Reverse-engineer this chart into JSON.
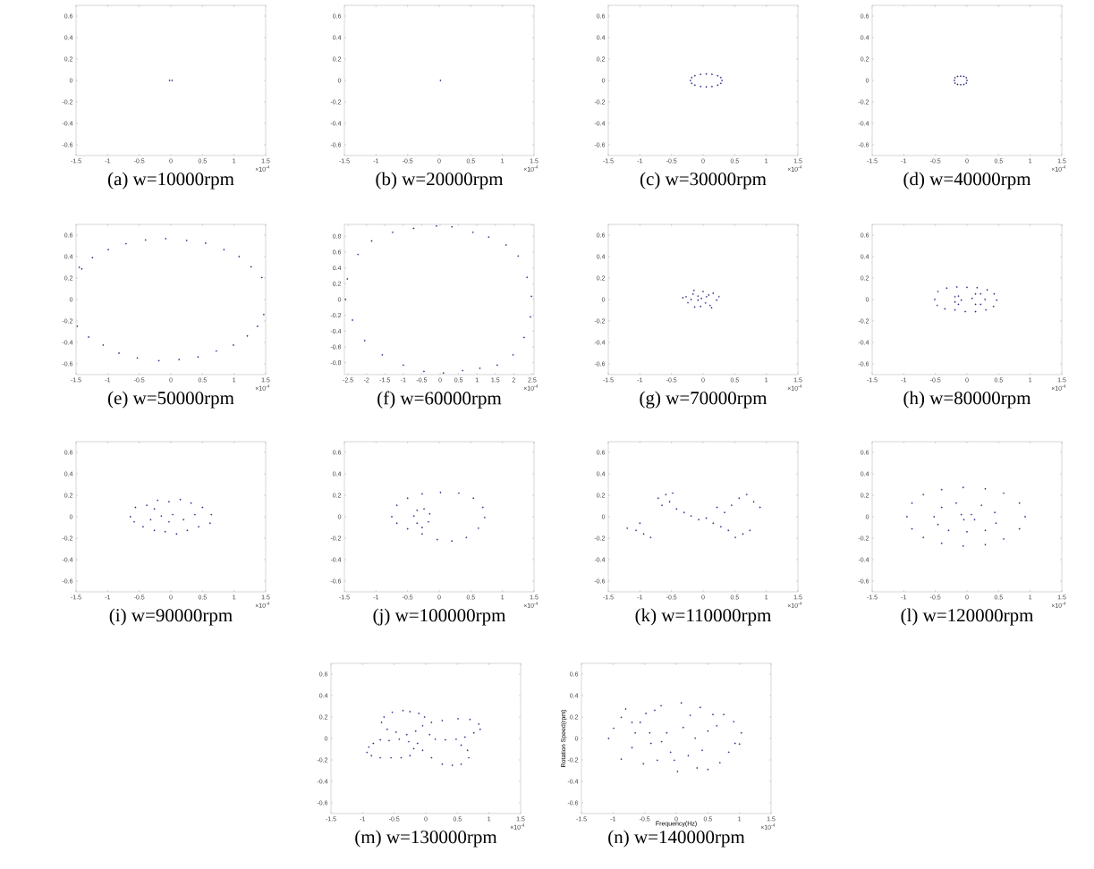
{
  "chart_data": [
    {
      "type": "scatter",
      "title": "(a) w=10000rpm",
      "color": "#2e2e8a",
      "marker": "circle",
      "xlim": [
        -1.5,
        1.5
      ],
      "ylim": [
        -0.7,
        0.7
      ],
      "xticks": [
        -1.5,
        -1,
        -0.5,
        0,
        0.5,
        1,
        1.5
      ],
      "yticks": [
        -0.6,
        -0.4,
        -0.2,
        0,
        0.2,
        0.4,
        0.6
      ],
      "annotations": [
        "×10$^{-4}$"
      ],
      "x": [
        -0.02,
        0.02
      ],
      "values": [
        0,
        0
      ]
    },
    {
      "type": "scatter",
      "title": "(b) w=20000rpm",
      "color": "#2e2e8a",
      "marker": "circle",
      "xlim": [
        -1.5,
        1.5
      ],
      "ylim": [
        -0.7,
        0.7
      ],
      "xticks": [
        -1.5,
        -1,
        -0.5,
        0,
        0.5,
        1,
        1.5
      ],
      "yticks": [
        -0.6,
        -0.4,
        -0.2,
        0,
        0.2,
        0.4,
        0.6
      ],
      "annotations": [
        "×10$^{-4}$"
      ],
      "x": [
        0.02
      ],
      "values": [
        0
      ]
    },
    {
      "type": "scatter",
      "title": "(c) w=30000rpm",
      "color": "#2e2e8a",
      "marker": "circle",
      "xlim": [
        -1.5,
        1.5
      ],
      "ylim": [
        -0.7,
        0.7
      ],
      "xticks": [
        -1.5,
        -1,
        -0.5,
        0,
        0.5,
        1,
        1.5
      ],
      "yticks": [
        -0.6,
        -0.4,
        -0.2,
        0,
        0.2,
        0.4,
        0.6
      ],
      "annotations": [
        "×10$^{-4}$"
      ],
      "x": [
        0.3,
        0.28,
        0.23,
        0.14,
        0.05,
        -0.04,
        -0.13,
        -0.18,
        -0.2,
        -0.18,
        -0.13,
        -0.04,
        0.05,
        0.14,
        0.23,
        0.28
      ],
      "values": [
        0,
        0.027,
        0.044,
        0.057,
        0.06,
        0.057,
        0.044,
        0.027,
        0,
        -0.027,
        -0.044,
        -0.057,
        -0.06,
        -0.057,
        -0.044,
        -0.027
      ]
    },
    {
      "type": "scatter",
      "title": "(d) w=40000rpm",
      "color": "#2e2e8a",
      "marker": "circle",
      "xlim": [
        -1.5,
        1.5
      ],
      "ylim": [
        -0.7,
        0.7
      ],
      "xticks": [
        -1.5,
        -1,
        -0.5,
        0,
        0.5,
        1,
        1.5
      ],
      "yticks": [
        -0.6,
        -0.4,
        -0.2,
        0,
        0.2,
        0.4,
        0.6
      ],
      "annotations": [
        "×10$^{-4}$"
      ],
      "x": [
        0,
        -0.01,
        -0.05,
        -0.1,
        -0.15,
        -0.19,
        -0.2,
        -0.19,
        -0.15,
        -0.1,
        -0.05,
        -0.01
      ],
      "values": [
        0,
        0.025,
        0.038,
        0.04,
        0.038,
        0.025,
        0,
        -0.025,
        -0.038,
        -0.04,
        -0.038,
        -0.025
      ]
    },
    {
      "type": "scatter",
      "title": "(e) w=50000rpm",
      "color": "#2e2e8a",
      "marker": "circle",
      "xlim": [
        -1.5,
        1.5
      ],
      "ylim": [
        -0.7,
        0.7
      ],
      "xticks": [
        -1.5,
        -1,
        -0.5,
        0,
        0.5,
        1,
        1.5
      ],
      "yticks": [
        -0.6,
        -0.4,
        -0.2,
        0,
        0.2,
        0.4,
        0.6
      ],
      "annotations": [
        "×10$^{-4}$"
      ],
      "x": [
        -1.45,
        -1.41,
        -1.24,
        -0.99,
        -0.71,
        -0.4,
        -0.08,
        0.25,
        0.55,
        0.84,
        1.08,
        1.27,
        1.44,
        1.47,
        1.37,
        1.21,
        0.99,
        0.72,
        0.43,
        0.13,
        -0.19,
        -0.53,
        -0.82,
        -1.07,
        -1.3,
        -1.48
      ],
      "values": [
        0.3,
        0.285,
        0.39,
        0.465,
        0.52,
        0.555,
        0.567,
        0.55,
        0.525,
        0.465,
        0.4,
        0.305,
        0.205,
        -0.14,
        -0.25,
        -0.34,
        -0.425,
        -0.48,
        -0.535,
        -0.56,
        -0.57,
        -0.545,
        -0.5,
        -0.425,
        -0.35,
        -0.25
      ]
    },
    {
      "type": "scatter",
      "title": "(f) w=60000rpm",
      "color": "#2e2e8a",
      "marker": "circle",
      "xlim": [
        -2.6,
        2.55
      ],
      "ylim": [
        -0.95,
        0.95
      ],
      "xticks": [
        -2.5,
        -2,
        -1.5,
        -1,
        -0.5,
        0,
        0.5,
        1,
        1.5,
        2,
        2.5
      ],
      "yticks": [
        -0.8,
        -0.6,
        -0.4,
        -0.2,
        0,
        0.2,
        0.4,
        0.6,
        0.8
      ],
      "annotations": [
        "×10$^{-4}$"
      ],
      "x": [
        -0.1,
        0.32,
        0.89,
        1.32,
        1.79,
        2.12,
        2.36,
        2.48,
        2.45,
        2.28,
        1.98,
        1.55,
        1.08,
        0.61,
        0.09,
        -0.44,
        -1.0,
        -1.57,
        -2.05,
        -2.38,
        -2.57,
        -2.52,
        -2.23,
        -1.86,
        -1.29,
        -0.72
      ],
      "values": [
        0.93,
        0.92,
        0.85,
        0.79,
        0.69,
        0.55,
        0.28,
        0.04,
        -0.22,
        -0.48,
        -0.7,
        -0.83,
        -0.87,
        -0.9,
        -0.93,
        -0.91,
        -0.83,
        -0.7,
        -0.52,
        -0.26,
        0,
        0.26,
        0.57,
        0.74,
        0.85,
        0.9
      ]
    },
    {
      "type": "scatter",
      "title": "(g) w=70000rpm",
      "color": "#2e2e8a",
      "marker": "circle",
      "xlim": [
        -1.5,
        1.5
      ],
      "ylim": [
        -0.7,
        0.7
      ],
      "xticks": [
        -1.5,
        -1,
        -0.5,
        0,
        0.5,
        1,
        1.5
      ],
      "yticks": [
        -0.6,
        -0.4,
        -0.2,
        0,
        0.2,
        0.4,
        0.6
      ],
      "annotations": [
        "×10$^{-4}$"
      ],
      "x": [
        -0.32,
        -0.24,
        -0.16,
        -0.145,
        -0.08,
        -0.04,
        0,
        0.054,
        0.11,
        0.16,
        0.215,
        0.25,
        -0.19,
        -0.134,
        0.038,
        0.09,
        -0.27,
        0.134,
        -0.08,
        -0.027
      ],
      "values": [
        0.016,
        -0.03,
        0.05,
        0.084,
        -0.006,
        -0.065,
        0.074,
        0.026,
        -0.055,
        0.058,
        -0.006,
        0.026,
        0,
        -0.07,
        -0.032,
        0.042,
        0.026,
        -0.077,
        0.032,
        0.01
      ]
    },
    {
      "type": "scatter",
      "title": "(h) w=80000rpm",
      "color": "#2e2e8a",
      "marker": "circle",
      "xlim": [
        -1.5,
        1.5
      ],
      "ylim": [
        -0.7,
        0.7
      ],
      "xticks": [
        -1.5,
        -1,
        -0.5,
        0,
        0.5,
        1,
        1.5
      ],
      "yticks": [
        -0.6,
        -0.4,
        -0.2,
        0,
        0.2,
        0.4,
        0.6
      ],
      "annotations": [
        "×10$^{-4}$"
      ],
      "x": [
        -0.51,
        -0.46,
        -0.32,
        -0.16,
        0,
        0.16,
        0.32,
        0.43,
        0.47,
        0.42,
        0.3,
        0.135,
        -0.027,
        -0.19,
        -0.35,
        -0.47,
        -0.19,
        -0.135,
        -0.09,
        -0.135,
        -0.19,
        0.08,
        0.135,
        0.216,
        0.286,
        0.216,
        0.135
      ],
      "values": [
        0,
        0.074,
        0.106,
        0.116,
        0.113,
        0.11,
        0.09,
        0.052,
        -0.006,
        -0.065,
        -0.097,
        -0.113,
        -0.113,
        -0.097,
        -0.087,
        -0.055,
        0.026,
        0.032,
        -0.006,
        -0.045,
        -0.023,
        0.01,
        0.052,
        0.052,
        0,
        -0.045,
        -0.045
      ]
    },
    {
      "type": "scatter",
      "title": "(i) w=90000rpm",
      "color": "#2e2e8a",
      "marker": "circle",
      "xlim": [
        -1.5,
        1.5
      ],
      "ylim": [
        -0.7,
        0.7
      ],
      "xticks": [
        -1.5,
        -1,
        -0.5,
        0,
        0.5,
        1,
        1.5
      ],
      "yticks": [
        -0.6,
        -0.4,
        -0.2,
        0,
        0.2,
        0.4,
        0.6
      ],
      "annotations": [
        "×10$^{-4}$"
      ],
      "x": [
        -0.64,
        -0.56,
        -0.38,
        -0.26,
        -0.21,
        -0.03,
        0.15,
        0.32,
        0.5,
        0.64,
        0.62,
        0.44,
        0.26,
        0.09,
        -0.09,
        -0.26,
        -0.44,
        -0.58,
        -0.15,
        0.03,
        0.2,
        -0.32,
        -0.03,
        0.38
      ],
      "values": [
        0,
        0.087,
        0.107,
        0.073,
        0.153,
        0.14,
        0.16,
        0.127,
        0.087,
        0.02,
        -0.06,
        -0.093,
        -0.127,
        -0.16,
        -0.14,
        -0.127,
        -0.093,
        -0.047,
        0.007,
        0.02,
        -0.027,
        -0.027,
        -0.047,
        0.02
      ]
    },
    {
      "type": "scatter",
      "title": "(j) w=100000rpm",
      "color": "#2e2e8a",
      "marker": "circle",
      "xlim": [
        -1.5,
        1.5
      ],
      "ylim": [
        -0.7,
        0.7
      ],
      "xticks": [
        -1.5,
        -1,
        -0.5,
        0,
        0.5,
        1,
        1.5
      ],
      "yticks": [
        -0.6,
        -0.4,
        -0.2,
        0,
        0.2,
        0.4,
        0.6
      ],
      "annotations": [
        "×10$^{-4}$"
      ],
      "x": [
        -0.75,
        -0.67,
        -0.5,
        -0.27,
        0.02,
        0.31,
        0.54,
        0.69,
        0.72,
        0.62,
        0.43,
        0.2,
        -0.03,
        -0.27,
        -0.5,
        -0.67,
        -0.4,
        -0.35,
        -0.24,
        -0.15,
        -0.17,
        -0.27,
        -0.35
      ],
      "values": [
        0,
        0.107,
        0.173,
        0.213,
        0.227,
        0.22,
        0.173,
        0.087,
        -0.007,
        -0.107,
        -0.193,
        -0.227,
        -0.213,
        -0.16,
        -0.113,
        -0.06,
        0.007,
        0.06,
        0.073,
        0.027,
        -0.047,
        -0.1,
        -0.06
      ]
    },
    {
      "type": "scatter",
      "title": "(k) w=110000rpm",
      "color": "#2e2e8a",
      "marker": "circle",
      "xlim": [
        -1.5,
        1.5
      ],
      "ylim": [
        -0.7,
        0.7
      ],
      "xticks": [
        -1.5,
        -1,
        -0.5,
        0,
        0.5,
        1,
        1.5
      ],
      "yticks": [
        -0.6,
        -0.4,
        -0.2,
        0,
        0.2,
        0.4,
        0.6
      ],
      "annotations": [
        "×10$^{-4}$"
      ],
      "x": [
        -1.2,
        -1.06,
        -0.94,
        -0.83,
        -1.0,
        -0.71,
        -0.59,
        -0.53,
        -0.65,
        -0.48,
        -0.42,
        -0.3,
        -0.19,
        -0.07,
        0.05,
        0.16,
        0.28,
        0.4,
        0.51,
        0.63,
        0.34,
        0.45,
        0.57,
        0.69,
        0.8,
        0.9,
        0.74,
        0.22
      ],
      "values": [
        -0.107,
        -0.127,
        -0.16,
        -0.193,
        -0.06,
        0.173,
        0.207,
        0.14,
        0.107,
        0.22,
        0.073,
        0.04,
        0.007,
        -0.027,
        -0.013,
        -0.06,
        -0.093,
        -0.127,
        -0.193,
        -0.16,
        0.04,
        0.107,
        0.173,
        0.207,
        0.14,
        0.087,
        -0.127,
        0.087
      ]
    },
    {
      "type": "scatter",
      "title": "(l) w=120000rpm",
      "color": "#2e2e8a",
      "marker": "circle",
      "xlim": [
        -1.5,
        1.5
      ],
      "ylim": [
        -0.7,
        0.7
      ],
      "xticks": [
        -1.5,
        -1,
        -0.5,
        0,
        0.5,
        1,
        1.5
      ],
      "yticks": [
        -0.6,
        -0.4,
        -0.2,
        0,
        0.2,
        0.4,
        0.6
      ],
      "annotations": [
        "×10$^{-4}$"
      ],
      "x": [
        -0.95,
        -0.87,
        -0.69,
        -0.4,
        -0.06,
        0.29,
        0.58,
        0.83,
        0.92,
        0.83,
        0.58,
        0.29,
        -0.06,
        -0.4,
        -0.69,
        -0.87,
        -0.52,
        -0.4,
        -0.17,
        0.23,
        0.44,
        0.46,
        0.29,
        0,
        -0.29,
        -0.46,
        -0.09,
        -0.05,
        0.07,
        0.12
      ],
      "values": [
        0,
        0.127,
        0.207,
        0.253,
        0.273,
        0.26,
        0.22,
        0.127,
        0,
        -0.113,
        -0.207,
        -0.26,
        -0.273,
        -0.247,
        -0.193,
        -0.113,
        0,
        0.087,
        0.127,
        0.107,
        0.04,
        -0.06,
        -0.127,
        -0.14,
        -0.127,
        -0.073,
        0.02,
        -0.027,
        0.02,
        -0.027
      ]
    },
    {
      "type": "scatter",
      "title": "(m) w=130000rpm",
      "color": "#2e2e8a",
      "marker": "circle",
      "xlim": [
        -1.5,
        1.5
      ],
      "ylim": [
        -0.7,
        0.7
      ],
      "xticks": [
        -1.5,
        -1,
        -0.5,
        0,
        0.5,
        1,
        1.5
      ],
      "yticks": [
        -0.6,
        -0.4,
        -0.2,
        0,
        0.2,
        0.4,
        0.6
      ],
      "annotations": [
        "×10$^{-4}$"
      ],
      "x": [
        -0.9,
        -0.93,
        -0.86,
        -0.72,
        -0.55,
        -0.39,
        -0.25,
        -0.19,
        -0.27,
        -0.42,
        -0.58,
        -0.72,
        -0.83,
        -0.7,
        -0.66,
        -0.53,
        -0.36,
        -0.25,
        -0.11,
        -0.02,
        -0.05,
        -0.16,
        -0.3,
        -0.47,
        -0.61,
        0.09,
        0.26,
        0.51,
        0.7,
        0.84,
        0.86,
        0.76,
        0.62,
        0.48,
        0.31,
        0.15,
        0.06,
        -0.13,
        -0.05,
        0.09,
        0.26,
        0.42,
        0.56,
        0.68,
        0.66,
        0.56
      ],
      "values": [
        -0.08,
        -0.13,
        -0.16,
        -0.18,
        -0.18,
        -0.18,
        -0.16,
        -0.095,
        -0.03,
        -0.007,
        -0.02,
        -0.013,
        -0.046,
        0.15,
        0.2,
        0.243,
        0.26,
        0.25,
        0.233,
        0.2,
        0.118,
        0.069,
        0.036,
        0.059,
        0.085,
        0.15,
        0.167,
        0.184,
        0.177,
        0.134,
        0.085,
        0.052,
        0.013,
        -0.007,
        -0.013,
        -0.007,
        0.036,
        -0.046,
        -0.11,
        -0.18,
        -0.24,
        -0.25,
        -0.24,
        -0.18,
        -0.11,
        -0.062
      ]
    },
    {
      "type": "scatter",
      "title": "(n) w=140000rpm",
      "xlabel": "Frequency(Hz)",
      "ylabel": "Rotation Speed(rpm)",
      "color": "#2e2e8a",
      "marker": "circle",
      "xlim": [
        -1.5,
        1.5
      ],
      "ylim": [
        -0.7,
        0.7
      ],
      "xticks": [
        -1.5,
        -1,
        -0.5,
        0,
        0.5,
        1,
        1.5
      ],
      "yticks": [
        -0.6,
        -0.4,
        -0.2,
        0,
        0.2,
        0.4,
        0.6
      ],
      "annotations": [
        "×10$^{-4}$"
      ],
      "x": [
        -1.07,
        -0.99,
        -0.87,
        -0.87,
        -0.8,
        -0.7,
        -0.65,
        -0.7,
        -0.57,
        -0.52,
        -0.48,
        -0.42,
        -0.4,
        -0.34,
        -0.3,
        -0.24,
        -0.23,
        -0.15,
        -0.09,
        -0.03,
        0.02,
        0.08,
        0.11,
        0.19,
        0.22,
        0.3,
        0.33,
        0.38,
        0.41,
        0.5,
        0.58,
        0.64,
        0.69,
        0.75,
        0.83,
        0.91,
        0.93,
        1.0,
        1.03,
        0.5
      ],
      "values": [
        0,
        0.095,
        0.197,
        -0.193,
        0.275,
        0.15,
        0.052,
        -0.085,
        0.15,
        -0.236,
        0.233,
        0.052,
        -0.046,
        0.262,
        -0.203,
        0.305,
        -0.03,
        0.052,
        -0.128,
        -0.203,
        -0.308,
        0.331,
        0.102,
        -0.161,
        0.216,
        0.003,
        -0.275,
        0.289,
        -0.111,
        0.069,
        0.223,
        0.118,
        -0.226,
        0.223,
        -0.128,
        0.157,
        -0.046,
        -0.052,
        0.052,
        -0.289
      ]
    }
  ]
}
